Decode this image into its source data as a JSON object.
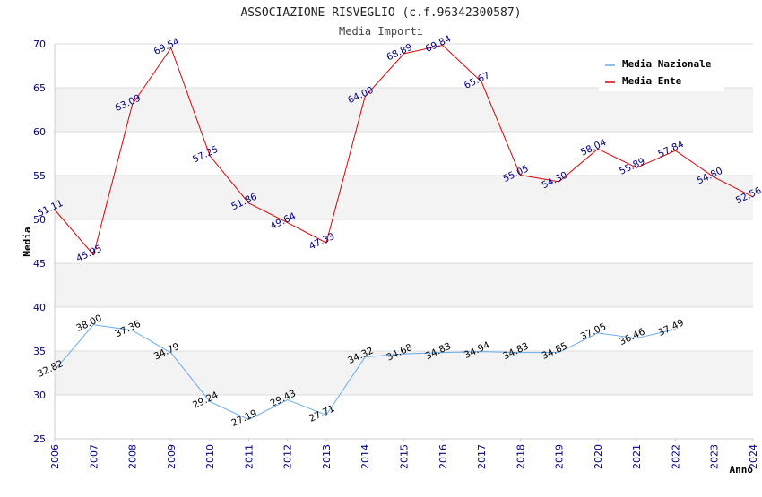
{
  "chart_data": {
    "type": "line",
    "title": "ASSOCIAZIONE RISVEGLIO (c.f.96342300587)",
    "subtitle": "Media Importi",
    "xlabel": "Anno",
    "ylabel": "Media",
    "x": [
      2006,
      2007,
      2008,
      2009,
      2010,
      2011,
      2012,
      2013,
      2014,
      2015,
      2016,
      2017,
      2018,
      2019,
      2020,
      2021,
      2022,
      2023,
      2024
    ],
    "xlim": [
      2006,
      2024
    ],
    "ylim": [
      25,
      70
    ],
    "yticks": [
      25,
      30,
      35,
      40,
      45,
      50,
      55,
      60,
      65,
      70
    ],
    "grid": "horizontal-bands",
    "legend_position": "top-right",
    "series": [
      {
        "name": "Media Nazionale",
        "color": "#66aaee",
        "label_color": "#000000",
        "values": [
          32.82,
          38.0,
          37.36,
          34.79,
          29.24,
          27.19,
          29.43,
          27.71,
          34.32,
          34.68,
          34.83,
          34.94,
          34.83,
          34.85,
          37.05,
          36.46,
          37.49,
          null,
          null
        ],
        "labels": [
          "32.82",
          "38.00",
          "37.36",
          "34.79",
          "29.24",
          "27.19",
          "29.43",
          "27.71",
          "34.32",
          "34.68",
          "34.83",
          "34.94",
          "34.83",
          "34.85",
          "37.05",
          "36.46",
          "37.49",
          null,
          null
        ]
      },
      {
        "name": "Media Ente",
        "color": "#dd0000",
        "label_color": "#000080",
        "values": [
          51.11,
          45.95,
          63.09,
          69.54,
          57.25,
          51.86,
          49.64,
          47.33,
          64.0,
          68.89,
          69.84,
          65.67,
          55.05,
          54.3,
          58.04,
          55.89,
          57.84,
          54.8,
          52.56
        ],
        "labels": [
          "51.11",
          "45.95",
          "63.09",
          "69.54",
          "57.25",
          "51.86",
          "49.64",
          "47.33",
          "64.00",
          "68.89",
          "69.84",
          "65.67",
          "55.05",
          "54.30",
          "58.04",
          "55.89",
          "57.84",
          "54.80",
          "52.56"
        ]
      }
    ]
  }
}
